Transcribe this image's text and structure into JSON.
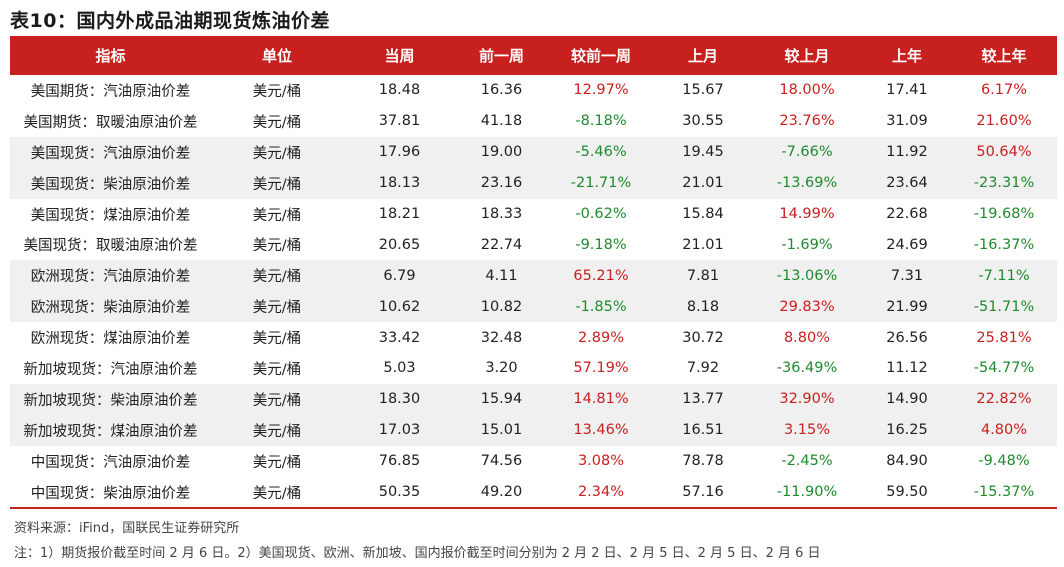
{
  "title": "表10：国内外成品油期现货炼油价差",
  "headers": [
    "指标",
    "单位",
    "当周",
    "前一周",
    "较前一周",
    "上月",
    "较上月",
    "上年",
    "较上年"
  ],
  "rows": [
    {
      "indicator": "美国期货：汽油原油价差",
      "unit": "美元/桶",
      "week": "18.48",
      "prev_week": "16.36",
      "vs_prev_week": "12.97%",
      "last_month": "15.67",
      "vs_last_month": "18.00%",
      "last_year": "17.41",
      "vs_last_year": "6.17%"
    },
    {
      "indicator": "美国期货：取暖油原油价差",
      "unit": "美元/桶",
      "week": "37.81",
      "prev_week": "41.18",
      "vs_prev_week": "-8.18%",
      "last_month": "30.55",
      "vs_last_month": "23.76%",
      "last_year": "31.09",
      "vs_last_year": "21.60%"
    },
    {
      "indicator": "美国现货：汽油原油价差",
      "unit": "美元/桶",
      "week": "17.96",
      "prev_week": "19.00",
      "vs_prev_week": "-5.46%",
      "last_month": "19.45",
      "vs_last_month": "-7.66%",
      "last_year": "11.92",
      "vs_last_year": "50.64%"
    },
    {
      "indicator": "美国现货：柴油原油价差",
      "unit": "美元/桶",
      "week": "18.13",
      "prev_week": "23.16",
      "vs_prev_week": "-21.71%",
      "last_month": "21.01",
      "vs_last_month": "-13.69%",
      "last_year": "23.64",
      "vs_last_year": "-23.31%"
    },
    {
      "indicator": "美国现货：煤油原油价差",
      "unit": "美元/桶",
      "week": "18.21",
      "prev_week": "18.33",
      "vs_prev_week": "-0.62%",
      "last_month": "15.84",
      "vs_last_month": "14.99%",
      "last_year": "22.68",
      "vs_last_year": "-19.68%"
    },
    {
      "indicator": "美国现货：取暖油原油价差",
      "unit": "美元/桶",
      "week": "20.65",
      "prev_week": "22.74",
      "vs_prev_week": "-9.18%",
      "last_month": "21.01",
      "vs_last_month": "-1.69%",
      "last_year": "24.69",
      "vs_last_year": "-16.37%"
    },
    {
      "indicator": "欧洲现货：汽油原油价差",
      "unit": "美元/桶",
      "week": "6.79",
      "prev_week": "4.11",
      "vs_prev_week": "65.21%",
      "last_month": "7.81",
      "vs_last_month": "-13.06%",
      "last_year": "7.31",
      "vs_last_year": "-7.11%"
    },
    {
      "indicator": "欧洲现货：柴油原油价差",
      "unit": "美元/桶",
      "week": "10.62",
      "prev_week": "10.82",
      "vs_prev_week": "-1.85%",
      "last_month": "8.18",
      "vs_last_month": "29.83%",
      "last_year": "21.99",
      "vs_last_year": "-51.71%"
    },
    {
      "indicator": "欧洲现货：煤油原油价差",
      "unit": "美元/桶",
      "week": "33.42",
      "prev_week": "32.48",
      "vs_prev_week": "2.89%",
      "last_month": "30.72",
      "vs_last_month": "8.80%",
      "last_year": "26.56",
      "vs_last_year": "25.81%"
    },
    {
      "indicator": "新加坡现货：汽油原油价差",
      "unit": "美元/桶",
      "week": "5.03",
      "prev_week": "3.20",
      "vs_prev_week": "57.19%",
      "last_month": "7.92",
      "vs_last_month": "-36.49%",
      "last_year": "11.12",
      "vs_last_year": "-54.77%"
    },
    {
      "indicator": "新加坡现货：柴油原油价差",
      "unit": "美元/桶",
      "week": "18.30",
      "prev_week": "15.94",
      "vs_prev_week": "14.81%",
      "last_month": "13.77",
      "vs_last_month": "32.90%",
      "last_year": "14.90",
      "vs_last_year": "22.82%"
    },
    {
      "indicator": "新加坡现货：煤油原油价差",
      "unit": "美元/桶",
      "week": "17.03",
      "prev_week": "15.01",
      "vs_prev_week": "13.46%",
      "last_month": "16.51",
      "vs_last_month": "3.15%",
      "last_year": "16.25",
      "vs_last_year": "4.80%"
    },
    {
      "indicator": "中国现货：汽油原油价差",
      "unit": "美元/桶",
      "week": "76.85",
      "prev_week": "74.56",
      "vs_prev_week": "3.08%",
      "last_month": "78.78",
      "vs_last_month": "-2.45%",
      "last_year": "84.90",
      "vs_last_year": "-9.48%"
    },
    {
      "indicator": "中国现货：柴油原油价差",
      "unit": "美元/桶",
      "week": "50.35",
      "prev_week": "49.20",
      "vs_prev_week": "2.34%",
      "last_month": "57.16",
      "vs_last_month": "-11.90%",
      "last_year": "59.50",
      "vs_last_year": "-15.37%"
    }
  ],
  "source": "资料来源：iFind，国联民生证券研究所",
  "note": "注：1）期货报价截至时间 2 月 6 日。2）美国现货、欧洲、新加坡、国内报价截至时间分别为 2 月 2 日、2 月 5 日、2 月 5 日、2 月 6 日",
  "colors": {
    "header_bg": "#c8201f",
    "positive": "#c8201f",
    "negative": "#1f8a2e",
    "band_bg": "#f0f0f0"
  }
}
